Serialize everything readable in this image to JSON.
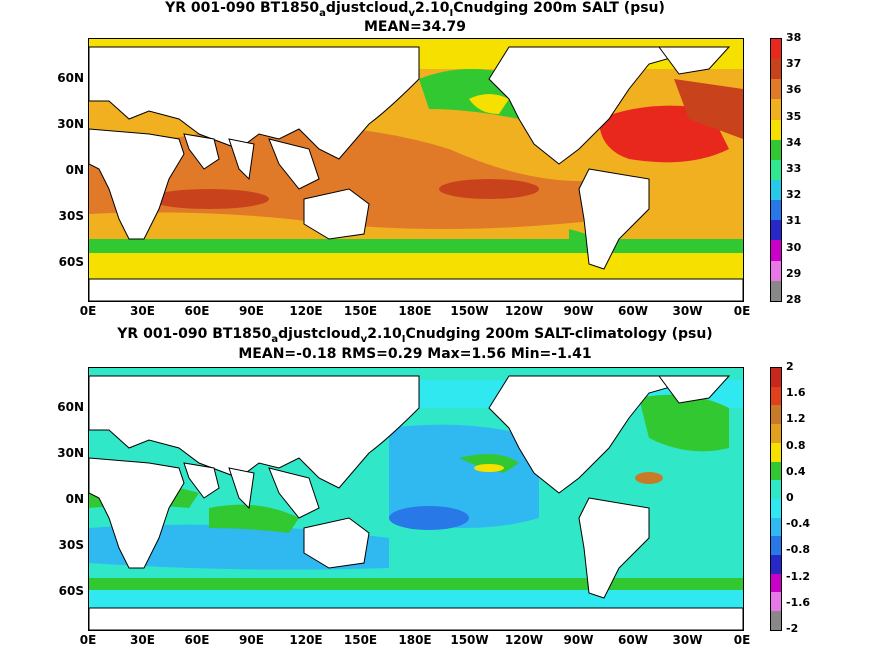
{
  "panel1": {
    "title_pre": "YR 001-090 BT1850",
    "title_sub1": "a",
    "title_mid1": "djustcloud",
    "title_sub2": "v",
    "title_mid2": "2.10",
    "title_sub3": "I",
    "title_end": "Cnudging 200m SALT (psu)",
    "stats": "MEAN=34.79",
    "colorbar_labels": [
      "38",
      "37",
      "36",
      "35",
      "34",
      "33",
      "32",
      "31",
      "30",
      "29",
      "28"
    ],
    "colorbar_colors": [
      "#e8281c",
      "#c8431c",
      "#e07a28",
      "#f0b020",
      "#f5e000",
      "#32c832",
      "#30e890",
      "#28c8e8",
      "#2878e8",
      "#2828c8",
      "#c800c8",
      "#e878e8",
      "#888888"
    ]
  },
  "panel2": {
    "title_pre": "YR 001-090 BT1850",
    "title_sub1": "a",
    "title_mid1": "djustcloud",
    "title_sub2": "v",
    "title_mid2": "2.10",
    "title_sub3": "I",
    "title_end": "Cnudging 200m SALT-climatology (psu)",
    "stats": "MEAN=-0.18   RMS=0.29   Max=1.56   Min=-1.41",
    "colorbar_labels": [
      "2",
      "1.6",
      "1.2",
      "0.8",
      "0.4",
      "0",
      "-0.4",
      "-0.8",
      "-1.2",
      "-1.6",
      "-2"
    ],
    "colorbar_colors": [
      "#c8281c",
      "#e0401c",
      "#c87a28",
      "#e0a020",
      "#f5e000",
      "#32c832",
      "#30e8c8",
      "#30e8f0",
      "#30b8f0",
      "#2878e8",
      "#2828c8",
      "#c800c8",
      "#e878e8",
      "#888888"
    ]
  },
  "axes": {
    "lat_labels": [
      "60N",
      "30N",
      "0N",
      "30S",
      "60S"
    ],
    "lon_labels": [
      "0E",
      "30E",
      "60E",
      "90E",
      "120E",
      "150E",
      "180E",
      "150W",
      "120W",
      "90W",
      "60W",
      "30W",
      "0E"
    ]
  }
}
